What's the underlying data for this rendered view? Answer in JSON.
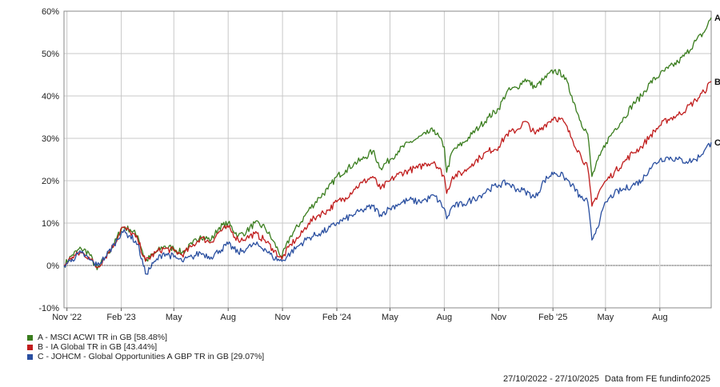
{
  "chart_data": {
    "type": "line",
    "title": "",
    "xlabel": "",
    "ylabel": "",
    "ylim": [
      -10,
      60
    ],
    "y_ticks": [
      -10,
      0,
      10,
      20,
      30,
      40,
      50,
      60
    ],
    "y_tick_labels": [
      "-10%",
      "0%",
      "10%",
      "20%",
      "30%",
      "40%",
      "50%",
      "60%"
    ],
    "x_range": [
      "2022-10-27",
      "2025-10-27"
    ],
    "x_ticks": [
      {
        "date": "2022-11-01",
        "label": "Nov '22"
      },
      {
        "date": "2023-02-01",
        "label": "Feb '23"
      },
      {
        "date": "2023-05-01",
        "label": "May"
      },
      {
        "date": "2023-08-01",
        "label": "Aug"
      },
      {
        "date": "2023-11-01",
        "label": "Nov"
      },
      {
        "date": "2024-02-01",
        "label": "Feb '24"
      },
      {
        "date": "2024-05-01",
        "label": "May"
      },
      {
        "date": "2024-08-01",
        "label": "Aug"
      },
      {
        "date": "2024-11-01",
        "label": "Nov"
      },
      {
        "date": "2025-02-01",
        "label": "Feb '25"
      },
      {
        "date": "2025-05-01",
        "label": "May"
      },
      {
        "date": "2025-08-01",
        "label": "Aug"
      }
    ],
    "grid": true,
    "legend_position": "bottom-left",
    "series": [
      {
        "name": "A - MSCI ACWI TR in GB [58.48%]",
        "end_label": "A",
        "color": "#3a7d1e",
        "points": [
          [
            "2022-10-27",
            0
          ],
          [
            "2022-11-10",
            2.5
          ],
          [
            "2022-11-25",
            4
          ],
          [
            "2022-12-08",
            3
          ],
          [
            "2022-12-22",
            -1
          ],
          [
            "2023-01-05",
            2
          ],
          [
            "2023-01-20",
            5
          ],
          [
            "2023-02-02",
            9
          ],
          [
            "2023-02-16",
            8.5
          ],
          [
            "2023-03-01",
            7
          ],
          [
            "2023-03-14",
            1
          ],
          [
            "2023-03-31",
            3
          ],
          [
            "2023-04-14",
            4.5
          ],
          [
            "2023-05-01",
            4
          ],
          [
            "2023-05-15",
            3
          ],
          [
            "2023-06-01",
            5
          ],
          [
            "2023-06-15",
            7
          ],
          [
            "2023-07-03",
            6
          ],
          [
            "2023-07-17",
            9
          ],
          [
            "2023-08-01",
            10
          ],
          [
            "2023-08-18",
            7
          ],
          [
            "2023-09-01",
            8
          ],
          [
            "2023-09-15",
            10
          ],
          [
            "2023-10-02",
            9
          ],
          [
            "2023-10-15",
            6
          ],
          [
            "2023-10-31",
            2
          ],
          [
            "2023-11-15",
            7
          ],
          [
            "2023-12-01",
            10
          ],
          [
            "2023-12-15",
            13
          ],
          [
            "2024-01-02",
            16
          ],
          [
            "2024-01-17",
            18
          ],
          [
            "2024-02-01",
            21
          ],
          [
            "2024-02-16",
            22.5
          ],
          [
            "2024-03-01",
            24
          ],
          [
            "2024-03-15",
            25
          ],
          [
            "2024-04-02",
            27
          ],
          [
            "2024-04-15",
            23
          ],
          [
            "2024-05-01",
            25
          ],
          [
            "2024-05-15",
            27
          ],
          [
            "2024-06-03",
            29
          ],
          [
            "2024-06-17",
            30
          ],
          [
            "2024-07-01",
            31
          ],
          [
            "2024-07-15",
            32
          ],
          [
            "2024-08-01",
            28
          ],
          [
            "2024-08-05",
            22
          ],
          [
            "2024-08-15",
            27
          ],
          [
            "2024-09-03",
            29
          ],
          [
            "2024-09-17",
            31
          ],
          [
            "2024-10-01",
            33
          ],
          [
            "2024-10-15",
            35
          ],
          [
            "2024-11-01",
            37
          ],
          [
            "2024-11-15",
            41
          ],
          [
            "2024-12-02",
            42
          ],
          [
            "2024-12-16",
            44
          ],
          [
            "2025-01-02",
            42
          ],
          [
            "2025-01-17",
            44
          ],
          [
            "2025-02-03",
            46
          ],
          [
            "2025-02-19",
            45
          ],
          [
            "2025-03-05",
            40
          ],
          [
            "2025-03-20",
            34
          ],
          [
            "2025-04-01",
            31
          ],
          [
            "2025-04-08",
            21
          ],
          [
            "2025-04-22",
            26
          ],
          [
            "2025-05-02",
            29
          ],
          [
            "2025-05-16",
            32
          ],
          [
            "2025-06-02",
            35
          ],
          [
            "2025-06-16",
            38
          ],
          [
            "2025-07-01",
            40
          ],
          [
            "2025-07-15",
            43
          ],
          [
            "2025-08-01",
            45
          ],
          [
            "2025-08-15",
            46.5
          ],
          [
            "2025-09-01",
            48
          ],
          [
            "2025-09-15",
            50
          ],
          [
            "2025-10-01",
            53
          ],
          [
            "2025-10-15",
            55
          ],
          [
            "2025-10-27",
            58.48
          ]
        ]
      },
      {
        "name": "B - IA Global TR in GB [43.44%]",
        "end_label": "B",
        "color": "#c01c1c",
        "points": [
          [
            "2022-10-27",
            0
          ],
          [
            "2022-11-10",
            2
          ],
          [
            "2022-11-25",
            3
          ],
          [
            "2022-12-08",
            2
          ],
          [
            "2022-12-22",
            -0.5
          ],
          [
            "2023-01-05",
            2
          ],
          [
            "2023-01-20",
            5
          ],
          [
            "2023-02-02",
            9
          ],
          [
            "2023-02-16",
            8
          ],
          [
            "2023-03-01",
            6
          ],
          [
            "2023-03-14",
            1
          ],
          [
            "2023-03-31",
            3
          ],
          [
            "2023-04-14",
            4
          ],
          [
            "2023-05-01",
            3.5
          ],
          [
            "2023-05-15",
            2.5
          ],
          [
            "2023-06-01",
            4.5
          ],
          [
            "2023-06-15",
            6.5
          ],
          [
            "2023-07-03",
            5.5
          ],
          [
            "2023-07-17",
            8
          ],
          [
            "2023-08-01",
            9
          ],
          [
            "2023-08-18",
            6
          ],
          [
            "2023-09-01",
            6.5
          ],
          [
            "2023-09-15",
            7.5
          ],
          [
            "2023-10-02",
            6
          ],
          [
            "2023-10-15",
            4
          ],
          [
            "2023-10-31",
            1.5
          ],
          [
            "2023-11-15",
            5
          ],
          [
            "2023-12-01",
            7
          ],
          [
            "2023-12-15",
            10
          ],
          [
            "2024-01-02",
            12
          ],
          [
            "2024-01-17",
            13
          ],
          [
            "2024-02-01",
            15
          ],
          [
            "2024-02-16",
            16
          ],
          [
            "2024-03-01",
            18
          ],
          [
            "2024-03-15",
            19.5
          ],
          [
            "2024-04-02",
            21
          ],
          [
            "2024-04-15",
            18
          ],
          [
            "2024-05-01",
            20
          ],
          [
            "2024-05-15",
            21.5
          ],
          [
            "2024-06-03",
            22.5
          ],
          [
            "2024-06-17",
            23
          ],
          [
            "2024-07-01",
            24
          ],
          [
            "2024-07-15",
            24.5
          ],
          [
            "2024-08-01",
            21
          ],
          [
            "2024-08-05",
            17
          ],
          [
            "2024-08-15",
            21
          ],
          [
            "2024-09-03",
            22
          ],
          [
            "2024-09-17",
            24
          ],
          [
            "2024-10-01",
            25.5
          ],
          [
            "2024-10-15",
            27
          ],
          [
            "2024-11-01",
            28
          ],
          [
            "2024-11-15",
            31
          ],
          [
            "2024-12-02",
            32
          ],
          [
            "2024-12-16",
            34
          ],
          [
            "2025-01-02",
            31
          ],
          [
            "2025-01-17",
            33
          ],
          [
            "2025-02-03",
            35
          ],
          [
            "2025-02-19",
            34
          ],
          [
            "2025-03-05",
            30
          ],
          [
            "2025-03-20",
            26
          ],
          [
            "2025-04-01",
            23
          ],
          [
            "2025-04-08",
            14
          ],
          [
            "2025-04-22",
            18
          ],
          [
            "2025-05-02",
            20
          ],
          [
            "2025-05-16",
            22
          ],
          [
            "2025-06-02",
            24.5
          ],
          [
            "2025-06-16",
            26.5
          ],
          [
            "2025-07-01",
            28
          ],
          [
            "2025-07-15",
            30.5
          ],
          [
            "2025-08-01",
            33
          ],
          [
            "2025-08-15",
            34.5
          ],
          [
            "2025-09-01",
            35.5
          ],
          [
            "2025-09-15",
            37
          ],
          [
            "2025-10-01",
            39
          ],
          [
            "2025-10-15",
            41
          ],
          [
            "2025-10-27",
            43.44
          ]
        ]
      },
      {
        "name": "C - JOHCM - Global Opportunities A GBP TR in GB [29.07%]",
        "end_label": "C",
        "color": "#2a4fa0",
        "points": [
          [
            "2022-10-27",
            0
          ],
          [
            "2022-11-10",
            1.5
          ],
          [
            "2022-11-25",
            3
          ],
          [
            "2022-12-08",
            1.5
          ],
          [
            "2022-12-22",
            0
          ],
          [
            "2023-01-05",
            2
          ],
          [
            "2023-01-20",
            5
          ],
          [
            "2023-02-02",
            8
          ],
          [
            "2023-02-16",
            7
          ],
          [
            "2023-03-01",
            5
          ],
          [
            "2023-03-14",
            -2
          ],
          [
            "2023-03-31",
            1
          ],
          [
            "2023-04-14",
            3
          ],
          [
            "2023-05-01",
            2
          ],
          [
            "2023-05-15",
            1
          ],
          [
            "2023-06-01",
            2
          ],
          [
            "2023-06-15",
            3
          ],
          [
            "2023-07-03",
            2
          ],
          [
            "2023-07-17",
            3.5
          ],
          [
            "2023-08-01",
            5
          ],
          [
            "2023-08-18",
            3
          ],
          [
            "2023-09-01",
            4
          ],
          [
            "2023-09-15",
            5
          ],
          [
            "2023-10-02",
            4
          ],
          [
            "2023-10-15",
            2
          ],
          [
            "2023-10-31",
            1
          ],
          [
            "2023-11-15",
            3
          ],
          [
            "2023-12-01",
            5
          ],
          [
            "2023-12-15",
            6.5
          ],
          [
            "2024-01-02",
            7.5
          ],
          [
            "2024-01-17",
            8.5
          ],
          [
            "2024-02-01",
            10
          ],
          [
            "2024-02-16",
            11
          ],
          [
            "2024-03-01",
            12
          ],
          [
            "2024-03-15",
            13
          ],
          [
            "2024-04-02",
            14
          ],
          [
            "2024-04-15",
            12
          ],
          [
            "2024-05-01",
            13.5
          ],
          [
            "2024-05-15",
            14.5
          ],
          [
            "2024-06-03",
            15.5
          ],
          [
            "2024-06-17",
            15
          ],
          [
            "2024-07-01",
            15.5
          ],
          [
            "2024-07-15",
            16.5
          ],
          [
            "2024-08-01",
            13.5
          ],
          [
            "2024-08-05",
            11
          ],
          [
            "2024-08-15",
            14
          ],
          [
            "2024-09-03",
            14.5
          ],
          [
            "2024-09-17",
            15.5
          ],
          [
            "2024-10-01",
            16.5
          ],
          [
            "2024-10-15",
            18
          ],
          [
            "2024-11-01",
            19
          ],
          [
            "2024-11-15",
            19.5
          ],
          [
            "2024-12-02",
            18
          ],
          [
            "2024-12-16",
            17.5
          ],
          [
            "2025-01-02",
            16
          ],
          [
            "2025-01-17",
            20
          ],
          [
            "2025-02-03",
            22
          ],
          [
            "2025-02-19",
            21
          ],
          [
            "2025-03-05",
            19
          ],
          [
            "2025-03-20",
            16
          ],
          [
            "2025-04-01",
            15
          ],
          [
            "2025-04-08",
            6
          ],
          [
            "2025-04-22",
            11
          ],
          [
            "2025-05-02",
            15
          ],
          [
            "2025-05-16",
            17
          ],
          [
            "2025-06-02",
            18
          ],
          [
            "2025-06-16",
            19
          ],
          [
            "2025-07-01",
            20
          ],
          [
            "2025-07-15",
            23
          ],
          [
            "2025-08-01",
            25
          ],
          [
            "2025-08-15",
            25.5
          ],
          [
            "2025-09-01",
            25
          ],
          [
            "2025-09-15",
            24.5
          ],
          [
            "2025-10-01",
            25
          ],
          [
            "2025-10-15",
            27
          ],
          [
            "2025-10-27",
            29.07
          ]
        ]
      }
    ]
  },
  "footer": {
    "date_range": "27/10/2022 - 27/10/2025",
    "source": "Data from FE fundinfo2025"
  }
}
